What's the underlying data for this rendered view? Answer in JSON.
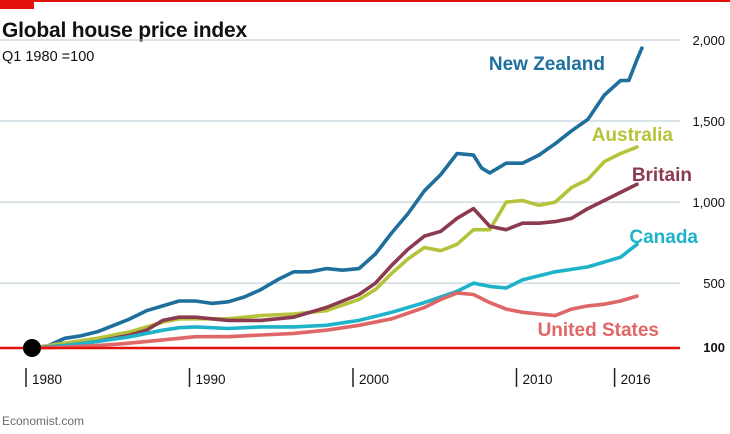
{
  "header": {
    "title": "Global house price index",
    "subtitle": "Q1 1980 =100"
  },
  "footer": {
    "source": "Economist.com"
  },
  "colors": {
    "brand_red": "#e3120b",
    "gridline": "#b7c9d3",
    "axis_text": "#111111"
  },
  "chart_data": {
    "type": "line",
    "title": "Global house price index",
    "subtitle": "Q1 1980 =100",
    "xlabel": "",
    "ylabel": "",
    "xlim": [
      1978.2,
      2020.4
    ],
    "ylim": [
      100,
      2000
    ],
    "x_ticks": [
      1980,
      1990,
      2000,
      2010,
      2016
    ],
    "x_tick_labels": [
      "1980",
      "1990",
      "2000",
      "2010",
      "2016"
    ],
    "y_ticks": [
      100,
      500,
      1000,
      1500,
      2000
    ],
    "y_tick_labels": [
      "100",
      "500",
      "1,000",
      "1,500",
      "2,000"
    ],
    "grid": true,
    "legend": "direct labels at line ends",
    "base_point": {
      "x": 1980,
      "y": 100
    },
    "series": [
      {
        "name": "New Zealand",
        "color": "#1f6f9c",
        "x": [
          1980,
          1981,
          1982,
          1983,
          1984,
          1985,
          1986,
          1987,
          1988,
          1989,
          1990,
          1991,
          1992,
          1993,
          1994,
          1995,
          1996,
          1997,
          1998,
          1999,
          2000,
          2001,
          2002,
          2003,
          2004,
          2005,
          2006,
          2007,
          2007.5,
          2008,
          2009,
          2010,
          2011,
          2012,
          2013,
          2014,
          2015,
          2016,
          2016.5,
          2017,
          2017.3
        ],
        "y": [
          100,
          115,
          160,
          175,
          200,
          240,
          280,
          330,
          360,
          390,
          390,
          375,
          385,
          415,
          460,
          520,
          570,
          570,
          590,
          580,
          590,
          680,
          810,
          930,
          1070,
          1170,
          1300,
          1290,
          1210,
          1180,
          1240,
          1240,
          1290,
          1360,
          1440,
          1510,
          1660,
          1750,
          1750,
          1880,
          1950
        ]
      },
      {
        "name": "Australia",
        "color": "#b5c33b",
        "x": [
          1980,
          1982,
          1984,
          1986,
          1988,
          1989,
          1990,
          1992,
          1994,
          1996,
          1998,
          2000,
          2001,
          2002,
          2003,
          2004,
          2005,
          2006,
          2007,
          2008,
          2009,
          2010,
          2011,
          2012,
          2013,
          2014,
          2015,
          2016,
          2017
        ],
        "y": [
          100,
          130,
          160,
          200,
          260,
          280,
          280,
          280,
          300,
          310,
          330,
          400,
          460,
          560,
          650,
          720,
          700,
          740,
          830,
          830,
          1000,
          1010,
          980,
          1000,
          1090,
          1140,
          1250,
          1300,
          1340
        ]
      },
      {
        "name": "Britain",
        "color": "#8b3a4f",
        "x": [
          1980,
          1982,
          1984,
          1986,
          1987,
          1988,
          1989,
          1990,
          1991,
          1992,
          1994,
          1996,
          1998,
          2000,
          2001,
          2002,
          2003,
          2004,
          2005,
          2006,
          2007,
          2008,
          2009,
          2010,
          2011,
          2012,
          2013,
          2014,
          2015,
          2016,
          2017
        ],
        "y": [
          100,
          115,
          140,
          180,
          210,
          270,
          290,
          290,
          280,
          270,
          270,
          290,
          350,
          430,
          500,
          610,
          710,
          790,
          820,
          900,
          960,
          850,
          830,
          870,
          870,
          880,
          900,
          960,
          1010,
          1060,
          1110
        ]
      },
      {
        "name": "Canada",
        "color": "#1fb3c9",
        "x": [
          1980,
          1982,
          1984,
          1986,
          1988,
          1989,
          1990,
          1992,
          1994,
          1996,
          1998,
          2000,
          2002,
          2004,
          2006,
          2007,
          2008,
          2009,
          2010,
          2012,
          2014,
          2016,
          2017
        ],
        "y": [
          100,
          115,
          140,
          170,
          210,
          225,
          230,
          220,
          230,
          230,
          240,
          270,
          320,
          380,
          450,
          500,
          480,
          470,
          520,
          570,
          600,
          660,
          740
        ]
      },
      {
        "name": "United States",
        "color": "#e06767",
        "x": [
          1980,
          1982,
          1984,
          1986,
          1988,
          1990,
          1992,
          1994,
          1996,
          1998,
          2000,
          2002,
          2004,
          2005,
          2006,
          2007,
          2008,
          2009,
          2010,
          2011,
          2012,
          2013,
          2014,
          2015,
          2016,
          2017
        ],
        "y": [
          100,
          105,
          115,
          130,
          150,
          170,
          170,
          180,
          190,
          210,
          240,
          280,
          350,
          400,
          440,
          430,
          380,
          340,
          320,
          310,
          300,
          340,
          360,
          370,
          390,
          420
        ]
      }
    ]
  }
}
